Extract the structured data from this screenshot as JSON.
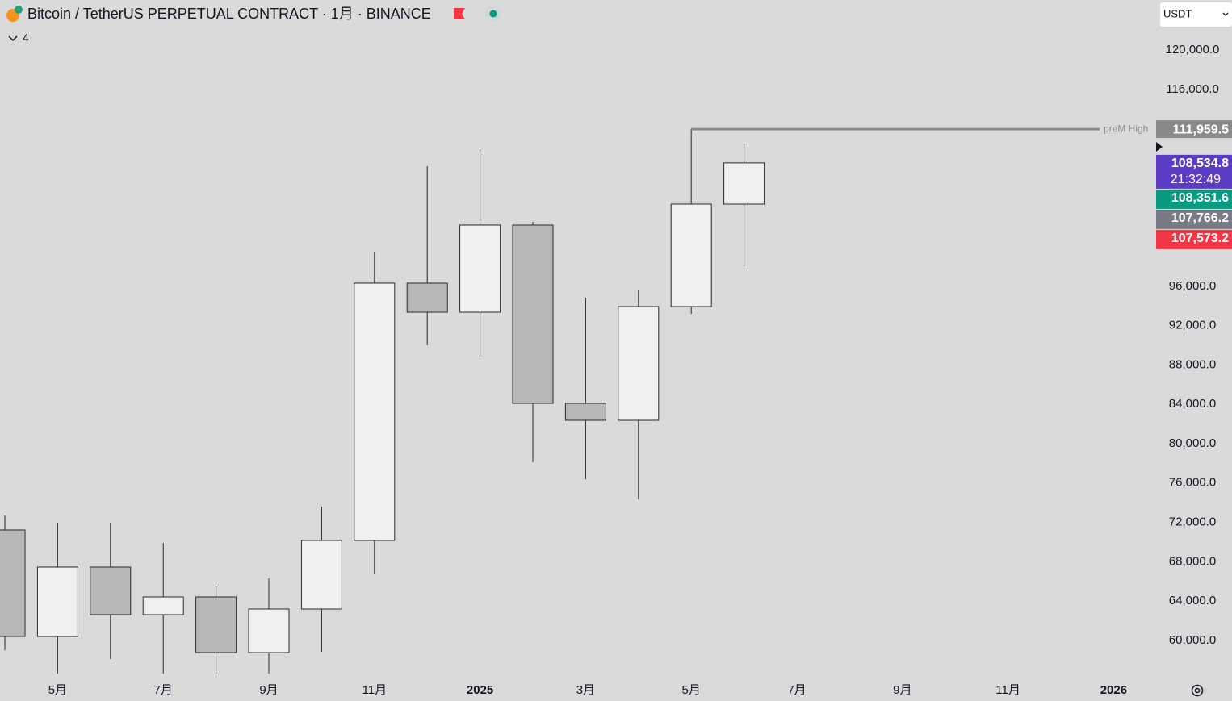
{
  "chart_data": {
    "type": "candlestick",
    "title": "Bitcoin / TetherUS PERPETUAL CONTRACT · 1月 · BINANCE",
    "indicators": "4",
    "currency": "USDT",
    "countdown": "21:32:49",
    "up_color": "#f0f0f0",
    "down_color": "#b8b8b8",
    "border_color": "#2a2a2a",
    "categories": [
      null,
      "5月",
      null,
      "7月",
      null,
      "9月",
      null,
      "11月",
      null,
      "2025",
      null,
      "3月",
      null,
      "5月",
      null,
      "7月",
      null,
      "9月",
      null,
      "11月",
      null,
      "2026"
    ],
    "open": [
      71228,
      60408,
      67457,
      62621,
      64424,
      58768,
      63195,
      70162,
      96311,
      93360,
      102213,
      84097,
      82376,
      93933,
      104344,
      null,
      null,
      null,
      null,
      null,
      null,
      null
    ],
    "high": [
      72700,
      71966,
      71966,
      69916,
      65490,
      66310,
      73604,
      99508,
      108196,
      109918,
      102540,
      94835,
      95573,
      111959.5,
      110491,
      null,
      null,
      null,
      null,
      null,
      null,
      null
    ],
    "low": [
      59000,
      56635,
      58113,
      56635,
      56635,
      56635,
      58850,
      66720,
      90000,
      88851,
      78114,
      76393,
      74344,
      93196,
      98032,
      null,
      null,
      null,
      null,
      null,
      null,
      null
    ],
    "close": [
      60408,
      67457,
      62621,
      64424,
      58768,
      63195,
      70162,
      96311,
      93360,
      102213,
      84097,
      82376,
      93933,
      104344,
      108534.8,
      null,
      null,
      null,
      null,
      null,
      null,
      null
    ],
    "ylim": [
      56227,
      125082
    ],
    "yticks": [
      {
        "value": 120000,
        "label": "120,000.0"
      },
      {
        "value": 116000,
        "label": "116,000.0"
      },
      {
        "value": 96000,
        "label": "96,000.0"
      },
      {
        "value": 92000,
        "label": "92,000.0"
      },
      {
        "value": 88000,
        "label": "88,000.0"
      },
      {
        "value": 84000,
        "label": "84,000.0"
      },
      {
        "value": 80000,
        "label": "80,000.0"
      },
      {
        "value": 76000,
        "label": "76,000.0"
      },
      {
        "value": 72000,
        "label": "72,000.0"
      },
      {
        "value": 68000,
        "label": "68,000.0"
      },
      {
        "value": 64000,
        "label": "64,000.0"
      },
      {
        "value": 60000,
        "label": "60,000.0"
      }
    ],
    "annotations": [
      {
        "label": "preM High",
        "value": 111959.5,
        "value_label": "111,959.5",
        "color": "#8a8a8a"
      }
    ],
    "price_tags": [
      {
        "value": 108534.8,
        "label": "108,534.8",
        "color": "#5b3cc4"
      },
      {
        "value": 108351.6,
        "label": "108,351.6",
        "color": "#089981"
      },
      {
        "value": 107766.2,
        "label": "107,766.2",
        "color": "#787b86"
      },
      {
        "value": 107573.2,
        "label": "107,573.2",
        "color": "#f23645"
      }
    ]
  }
}
